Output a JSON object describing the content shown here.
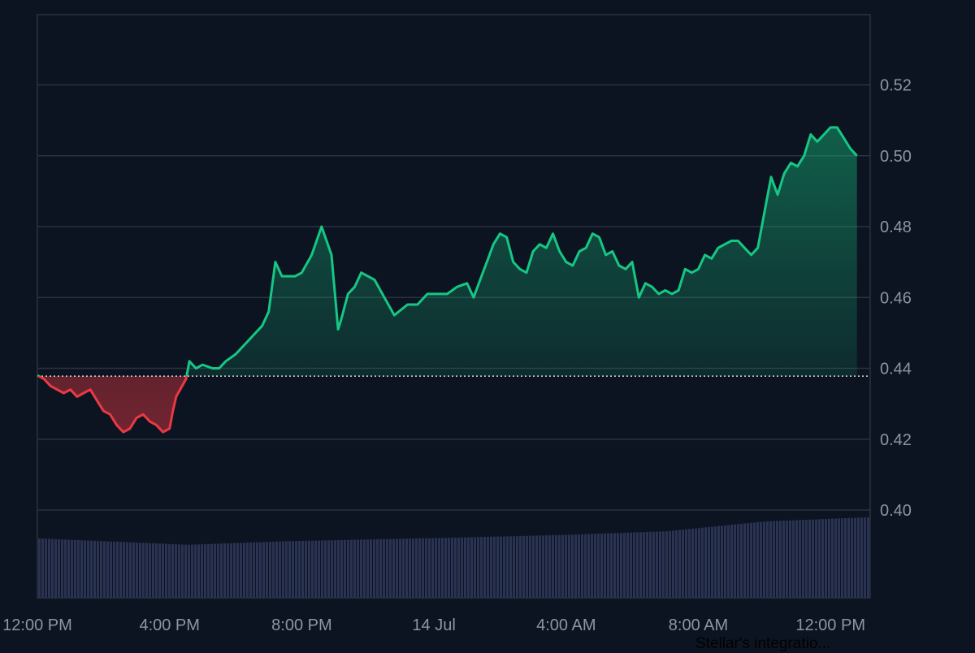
{
  "chart_data": {
    "type": "area",
    "title": "",
    "xlabel": "",
    "ylabel": "",
    "ylim": [
      0.38,
      0.54
    ],
    "yticks": [
      0.4,
      0.42,
      0.44,
      0.46,
      0.48,
      0.5,
      0.52
    ],
    "ytick_labels": [
      "0.40",
      "0.42",
      "0.44",
      "0.46",
      "0.48",
      "0.50",
      "0.52"
    ],
    "xlim_hours": [
      0,
      25.2
    ],
    "xticks": [
      {
        "h": 0,
        "label": "12:00 PM"
      },
      {
        "h": 4,
        "label": "4:00 PM"
      },
      {
        "h": 8,
        "label": "8:00 PM"
      },
      {
        "h": 12,
        "label": "14 Jul"
      },
      {
        "h": 16,
        "label": "4:00 AM"
      },
      {
        "h": 20,
        "label": "8:00 AM"
      },
      {
        "h": 24,
        "label": "12:00 PM"
      }
    ],
    "baseline": 0.4378,
    "grid": true,
    "colors": {
      "up": "#16c784",
      "down": "#ea3943",
      "grid": "#2a3140",
      "volume": "#2a3352",
      "baseline": "#d6d9de"
    },
    "price": [
      [
        0.0,
        0.438
      ],
      [
        0.2,
        0.437
      ],
      [
        0.4,
        0.435
      ],
      [
        0.6,
        0.434
      ],
      [
        0.8,
        0.433
      ],
      [
        1.0,
        0.434
      ],
      [
        1.2,
        0.432
      ],
      [
        1.4,
        0.433
      ],
      [
        1.6,
        0.434
      ],
      [
        1.8,
        0.431
      ],
      [
        2.0,
        0.428
      ],
      [
        2.2,
        0.427
      ],
      [
        2.4,
        0.424
      ],
      [
        2.6,
        0.422
      ],
      [
        2.8,
        0.423
      ],
      [
        3.0,
        0.426
      ],
      [
        3.2,
        0.427
      ],
      [
        3.4,
        0.425
      ],
      [
        3.6,
        0.424
      ],
      [
        3.8,
        0.422
      ],
      [
        4.0,
        0.423
      ],
      [
        4.1,
        0.428
      ],
      [
        4.2,
        0.432
      ],
      [
        4.5,
        0.437
      ],
      [
        4.6,
        0.442
      ],
      [
        4.8,
        0.44
      ],
      [
        5.0,
        0.441
      ],
      [
        5.3,
        0.44
      ],
      [
        5.5,
        0.44
      ],
      [
        5.7,
        0.442
      ],
      [
        6.0,
        0.444
      ],
      [
        6.3,
        0.447
      ],
      [
        6.6,
        0.45
      ],
      [
        6.8,
        0.452
      ],
      [
        7.0,
        0.456
      ],
      [
        7.2,
        0.47
      ],
      [
        7.4,
        0.466
      ],
      [
        7.8,
        0.466
      ],
      [
        8.0,
        0.467
      ],
      [
        8.3,
        0.472
      ],
      [
        8.6,
        0.48
      ],
      [
        8.9,
        0.472
      ],
      [
        9.1,
        0.451
      ],
      [
        9.2,
        0.454
      ],
      [
        9.4,
        0.461
      ],
      [
        9.6,
        0.463
      ],
      [
        9.8,
        0.467
      ],
      [
        10.2,
        0.465
      ],
      [
        10.5,
        0.46
      ],
      [
        10.8,
        0.455
      ],
      [
        11.2,
        0.458
      ],
      [
        11.5,
        0.458
      ],
      [
        11.8,
        0.461
      ],
      [
        12.1,
        0.461
      ],
      [
        12.4,
        0.461
      ],
      [
        12.7,
        0.463
      ],
      [
        13.0,
        0.464
      ],
      [
        13.2,
        0.46
      ],
      [
        13.4,
        0.465
      ],
      [
        13.6,
        0.47
      ],
      [
        13.8,
        0.475
      ],
      [
        14.0,
        0.478
      ],
      [
        14.2,
        0.477
      ],
      [
        14.4,
        0.47
      ],
      [
        14.6,
        0.468
      ],
      [
        14.8,
        0.467
      ],
      [
        15.0,
        0.473
      ],
      [
        15.2,
        0.475
      ],
      [
        15.4,
        0.474
      ],
      [
        15.6,
        0.478
      ],
      [
        15.8,
        0.473
      ],
      [
        16.0,
        0.47
      ],
      [
        16.2,
        0.469
      ],
      [
        16.4,
        0.473
      ],
      [
        16.6,
        0.474
      ],
      [
        16.8,
        0.478
      ],
      [
        17.0,
        0.477
      ],
      [
        17.2,
        0.472
      ],
      [
        17.4,
        0.473
      ],
      [
        17.6,
        0.469
      ],
      [
        17.8,
        0.468
      ],
      [
        18.0,
        0.47
      ],
      [
        18.2,
        0.46
      ],
      [
        18.4,
        0.464
      ],
      [
        18.6,
        0.463
      ],
      [
        18.8,
        0.461
      ],
      [
        19.0,
        0.462
      ],
      [
        19.2,
        0.461
      ],
      [
        19.4,
        0.462
      ],
      [
        19.6,
        0.468
      ],
      [
        19.8,
        0.467
      ],
      [
        20.0,
        0.468
      ],
      [
        20.2,
        0.472
      ],
      [
        20.4,
        0.471
      ],
      [
        20.6,
        0.474
      ],
      [
        20.8,
        0.475
      ],
      [
        21.0,
        0.476
      ],
      [
        21.2,
        0.476
      ],
      [
        21.4,
        0.474
      ],
      [
        21.6,
        0.472
      ],
      [
        21.8,
        0.474
      ],
      [
        22.0,
        0.484
      ],
      [
        22.2,
        0.494
      ],
      [
        22.4,
        0.489
      ],
      [
        22.6,
        0.495
      ],
      [
        22.8,
        0.498
      ],
      [
        23.0,
        0.497
      ],
      [
        23.2,
        0.5
      ],
      [
        23.4,
        0.506
      ],
      [
        23.6,
        0.504
      ],
      [
        23.8,
        0.506
      ],
      [
        24.0,
        0.508
      ],
      [
        24.2,
        0.508
      ],
      [
        24.4,
        0.505
      ],
      [
        24.6,
        0.502
      ],
      [
        24.8,
        0.5
      ]
    ],
    "volume_series": [
      [
        0.0,
        0.392
      ],
      [
        4.5,
        0.3902
      ],
      [
        7.5,
        0.3912
      ],
      [
        10.0,
        0.3917
      ],
      [
        13.0,
        0.3923
      ],
      [
        16.0,
        0.393
      ],
      [
        19.0,
        0.394
      ],
      [
        22.0,
        0.3968
      ],
      [
        25.2,
        0.398
      ]
    ]
  },
  "caption": {
    "text": "Stellar's integratio..."
  }
}
